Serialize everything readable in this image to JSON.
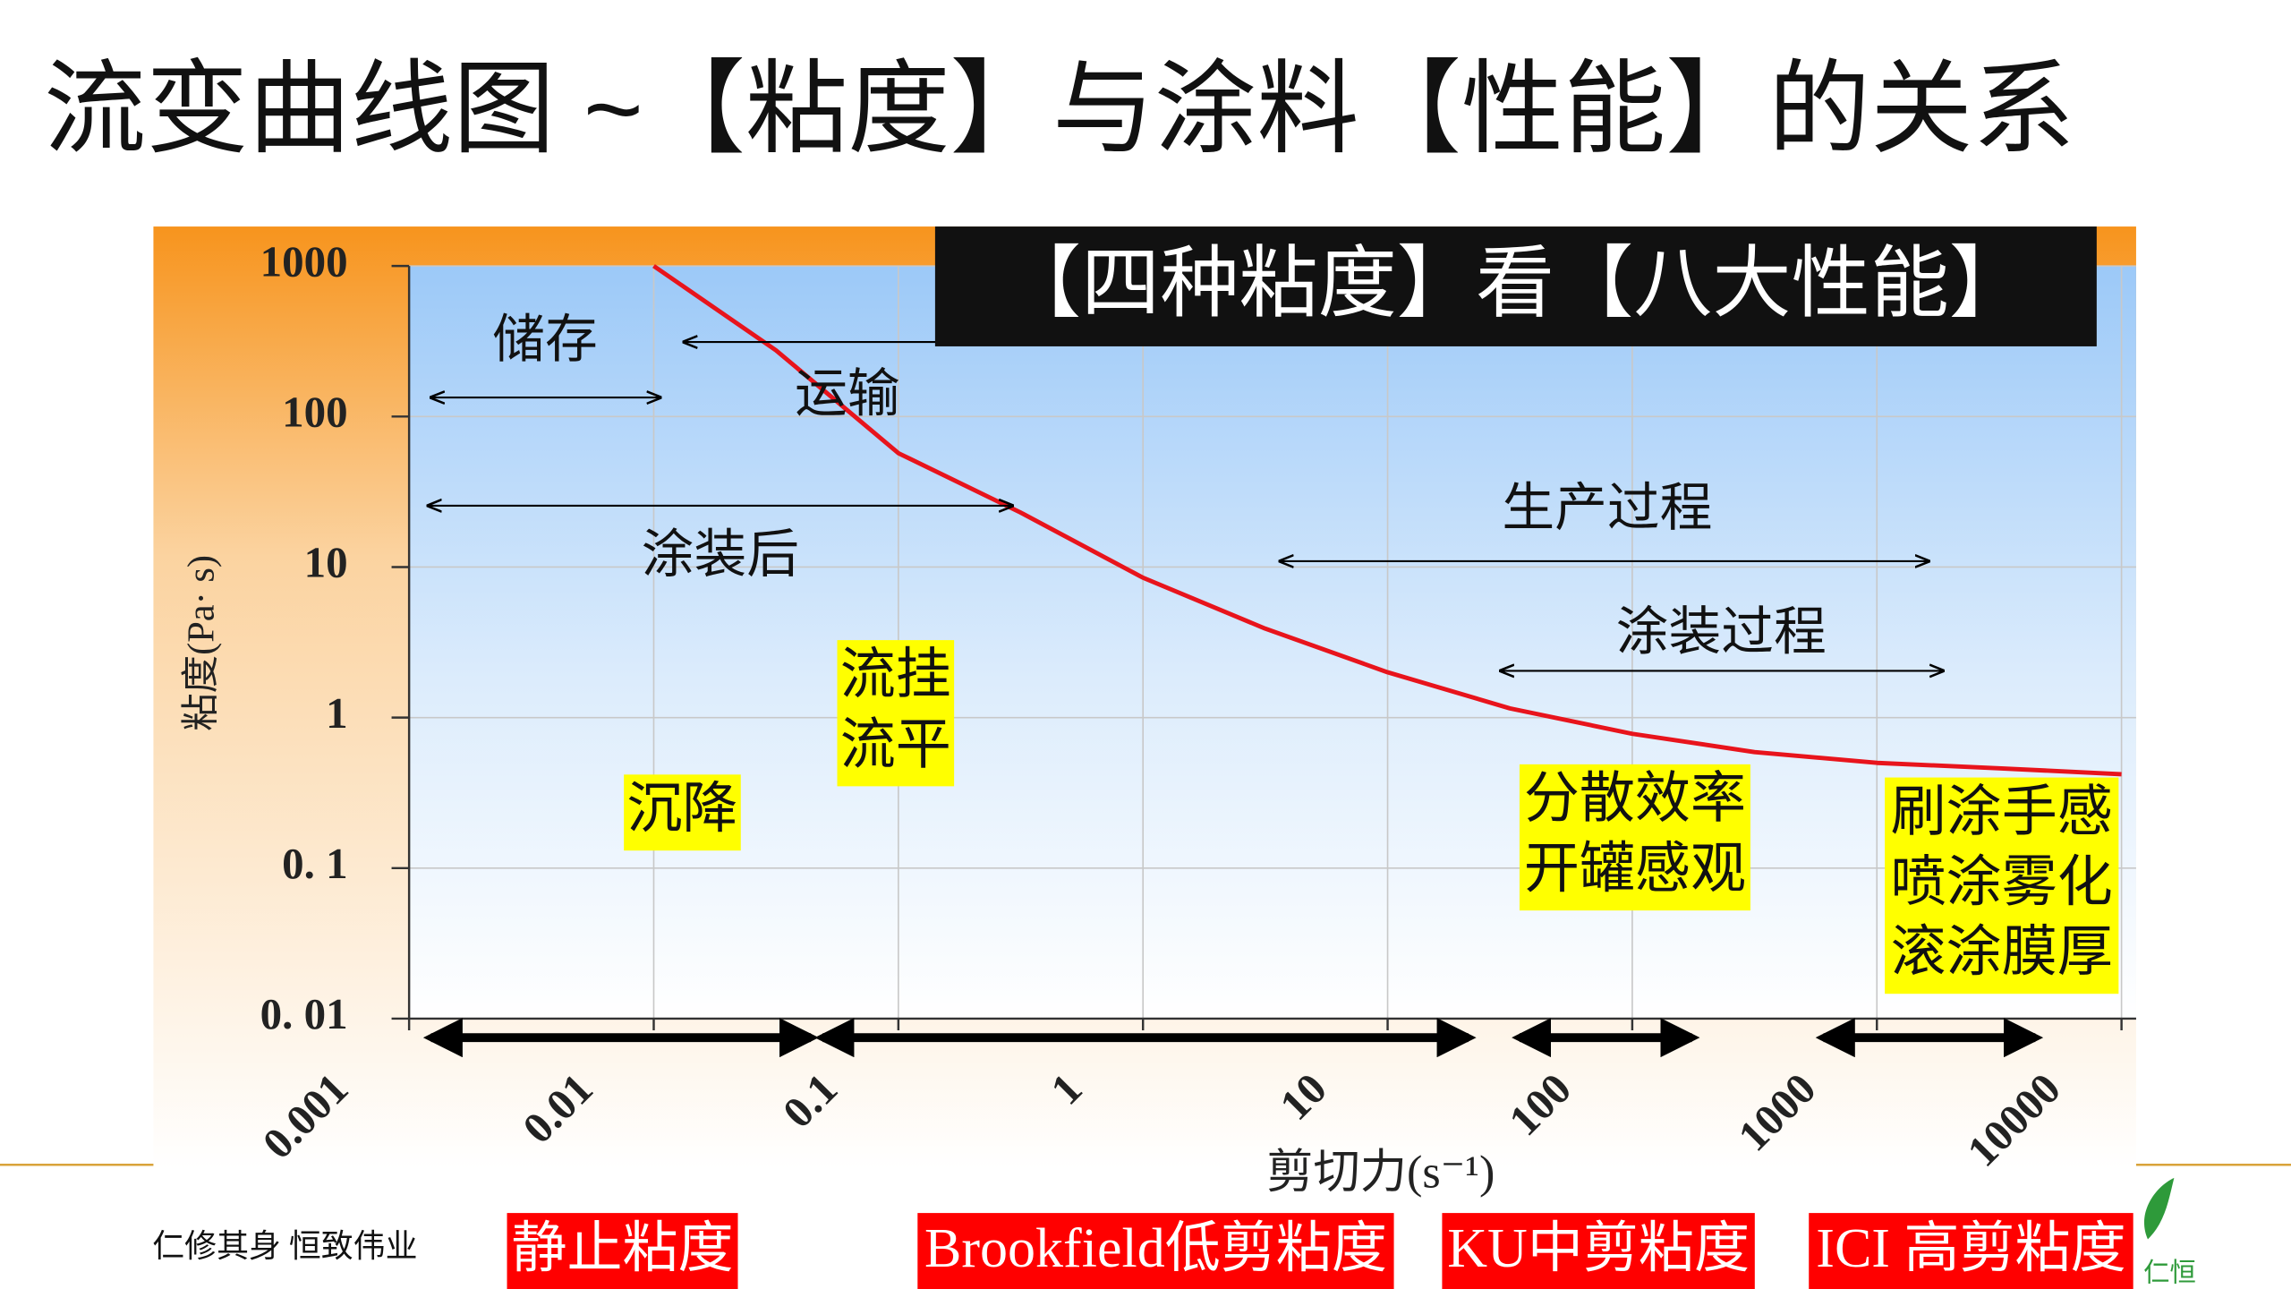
{
  "title": "流变曲线图 ~【粘度】与涂料【性能】的关系",
  "chart_data": {
    "type": "line",
    "title": "【四种粘度】看【八大性能】",
    "x_label": "剪切力(s⁻¹)",
    "y_label": "粘度(Pa· s)",
    "x": [
      0.01,
      0.0316,
      0.1,
      0.316,
      1,
      3.16,
      10,
      31.6,
      100,
      316,
      1000,
      3160,
      10000
    ],
    "series": [
      {
        "color": "#e8141c",
        "values": [
          1000,
          275,
          57,
          23,
          8.5,
          3.9,
          2.0,
          1.15,
          0.78,
          0.59,
          0.5,
          0.46,
          0.42
        ]
      }
    ],
    "x_scale": "log",
    "y_scale": "log",
    "xlim": [
      0.001,
      10000
    ],
    "ylim": [
      0.01,
      1000
    ],
    "xticks": [
      0.001,
      0.01,
      0.1,
      1,
      10,
      100,
      1000,
      10000
    ],
    "yticks": [
      {
        "value": 0.01,
        "label": "0. 01"
      },
      {
        "value": 0.1,
        "label": "0. 1"
      },
      1,
      10,
      100,
      1000
    ],
    "grid": true
  },
  "ranges": [
    "储存",
    "运输",
    "涂装后",
    "生产过程",
    "涂装过程"
  ],
  "properties": [
    [
      "沉降"
    ],
    [
      "流挂",
      "流平"
    ],
    [
      "分散效率",
      "开罐感观"
    ],
    [
      "刷涂手感",
      "喷涂雾化",
      "滚涂膜厚"
    ]
  ],
  "viscosity_types": [
    "静止粘度",
    "Brookfield低剪粘度",
    "KU中剪粘度",
    "ICI 高剪粘度"
  ],
  "footer": {
    "motto": "仁修其身  恒致伟业",
    "logo": "仁恒"
  }
}
